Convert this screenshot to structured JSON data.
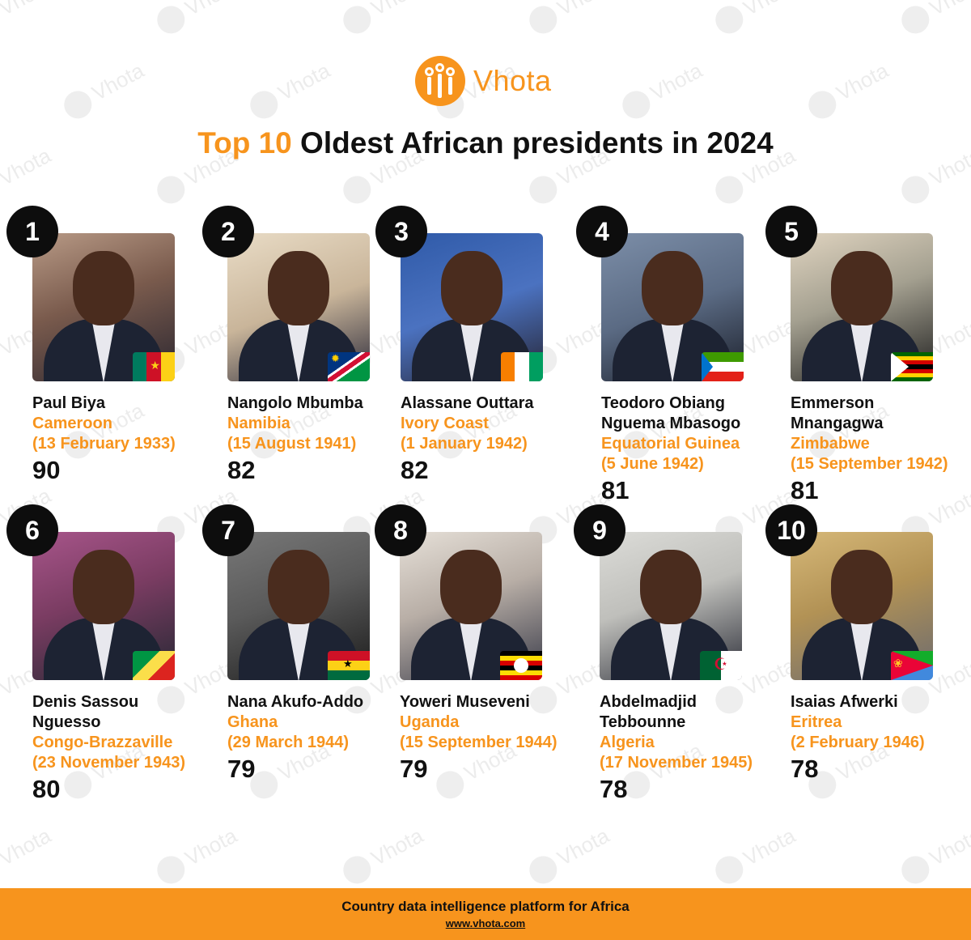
{
  "brand": {
    "name": "Vhota",
    "accent_color": "#f7941d",
    "logo_icon": "vhota-logo-icon"
  },
  "title": {
    "accent": "Top 10",
    "rest": " Oldest African presidents in 2024"
  },
  "watermark": "Vhota",
  "presidents": [
    {
      "rank": "1",
      "name": "Paul Biya",
      "country": "Cameroon",
      "dob": "(13 February 1933)",
      "age": "90",
      "flag_icon": "cameroon-flag-icon",
      "photo_icon": "paul-biya-photo"
    },
    {
      "rank": "2",
      "name": "Nangolo Mbumba",
      "country": "Namibia",
      "dob": "(15 August 1941)",
      "age": "82",
      "flag_icon": "namibia-flag-icon",
      "photo_icon": "nangolo-mbumba-photo"
    },
    {
      "rank": "3",
      "name": "Alassane Outtara",
      "country": "Ivory Coast",
      "dob": "(1 January 1942)",
      "age": "82",
      "flag_icon": "ivory-coast-flag-icon",
      "photo_icon": "alassane-outtara-photo"
    },
    {
      "rank": "4",
      "name": "Teodoro Obiang Nguema Mbasogo",
      "country": "Equatorial Guinea",
      "dob": "(5 June 1942)",
      "age": "81",
      "flag_icon": "equatorial-guinea-flag-icon",
      "photo_icon": "teodoro-obiang-photo"
    },
    {
      "rank": "5",
      "name": "Emmerson Mnangagwa",
      "country": "Zimbabwe",
      "dob": "(15 September 1942)",
      "age": "81",
      "flag_icon": "zimbabwe-flag-icon",
      "photo_icon": "emmerson-mnangagwa-photo"
    },
    {
      "rank": "6",
      "name": "Denis Sassou Nguesso",
      "country": "Congo-Brazzaville",
      "dob": "(23 November 1943)",
      "age": "80",
      "flag_icon": "congo-flag-icon",
      "photo_icon": "denis-sassou-nguesso-photo"
    },
    {
      "rank": "7",
      "name": "Nana Akufo-Addo",
      "country": "Ghana",
      "dob": "(29 March 1944)",
      "age": "79",
      "flag_icon": "ghana-flag-icon",
      "photo_icon": "nana-akufo-addo-photo"
    },
    {
      "rank": "8",
      "name": "Yoweri Museveni",
      "country": "Uganda",
      "dob": "(15 September 1944)",
      "age": "79",
      "flag_icon": "uganda-flag-icon",
      "photo_icon": "yoweri-museveni-photo"
    },
    {
      "rank": "9",
      "name": "Abdelmadjid Tebbounne",
      "country": "Algeria",
      "dob": "(17 November 1945)",
      "age": "78",
      "flag_icon": "algeria-flag-icon",
      "photo_icon": "abdelmadjid-tebbounne-photo"
    },
    {
      "rank": "10",
      "name": "Isaias Afwerki",
      "country": "Eritrea",
      "dob": "(2 February 1946)",
      "age": "78",
      "flag_icon": "eritrea-flag-icon",
      "photo_icon": "isaias-afwerki-photo"
    }
  ],
  "footer": {
    "tagline": "Country data intelligence platform for Africa",
    "url": "www.vhota.com"
  }
}
